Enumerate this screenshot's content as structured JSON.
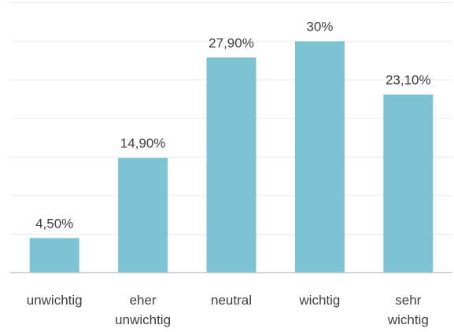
{
  "chart_data": {
    "type": "bar",
    "title": "",
    "xlabel": "",
    "ylabel": "",
    "categories": [
      [
        "unwichtig"
      ],
      [
        "eher",
        "unwichtig"
      ],
      [
        "neutral"
      ],
      [
        "wichtig"
      ],
      [
        "sehr",
        "wichtig"
      ]
    ],
    "values": [
      4.5,
      14.9,
      27.9,
      30,
      23.1
    ],
    "data_labels": [
      "4,50%",
      "14,90%",
      "27,90%",
      "30%",
      "23,10%"
    ],
    "ylim": [
      0,
      35
    ],
    "grid": true,
    "y_axis_visible": false,
    "legend": "none",
    "colors": {
      "bar": "#7ec3d3",
      "gridline": "#e8e8e8",
      "axis": "#c8c8c8",
      "text": "#404040"
    }
  }
}
